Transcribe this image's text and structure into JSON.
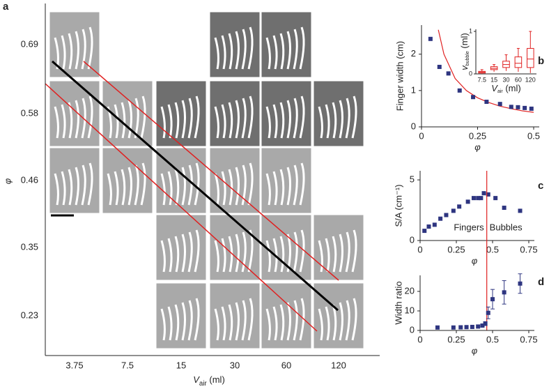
{
  "chart_data": [
    {
      "type": "image-grid",
      "panel_label": "a",
      "categories": [
        "3.75",
        "7.5",
        "15",
        "30",
        "60",
        "120"
      ],
      "row_categories": [
        "0.69",
        "0.58",
        "0.46",
        "0.35",
        "0.23"
      ],
      "xlabel": {
        "symbol": "V",
        "subscript": "air",
        "unit": " (ml)"
      },
      "ylabel": "φ",
      "fit_color": "#000000",
      "bound_color": "#e02020"
    },
    {
      "type": "scatter",
      "panel_label": "b",
      "x": [
        0.04,
        0.08,
        0.12,
        0.17,
        0.23,
        0.29,
        0.35,
        0.4,
        0.43,
        0.46,
        0.49
      ],
      "values": [
        2.42,
        1.65,
        1.47,
        1.0,
        0.82,
        0.69,
        0.63,
        0.55,
        0.54,
        0.52,
        0.5
      ],
      "color": "#2e3580",
      "fit": {
        "x": [
          0.075,
          0.1,
          0.15,
          0.2,
          0.25,
          0.3,
          0.35,
          0.4,
          0.45,
          0.5
        ],
        "values": [
          2.67,
          2.0,
          1.33,
          1.0,
          0.8,
          0.67,
          0.57,
          0.5,
          0.44,
          0.4
        ],
        "color": "#e02020"
      },
      "xlim": [
        0,
        0.5
      ],
      "xticks": [
        0,
        0.25,
        0.5
      ],
      "ylim": [
        0,
        2.8
      ],
      "yticks": [
        0,
        1,
        2
      ],
      "xlabel": "φ",
      "ylabel": "Finger width (cm)"
    },
    {
      "type": "box",
      "categories": [
        "7.5",
        "15",
        "30",
        "60",
        "120"
      ],
      "min": [
        0.0,
        0.05,
        0.07,
        0.05,
        0.02
      ],
      "q1": [
        0.02,
        0.1,
        0.15,
        0.15,
        0.15
      ],
      "median": [
        0.04,
        0.13,
        0.22,
        0.25,
        0.35
      ],
      "q3": [
        0.06,
        0.17,
        0.3,
        0.4,
        0.6
      ],
      "max": [
        0.1,
        0.22,
        0.45,
        0.6,
        1.0
      ],
      "color": "#e02020",
      "ylim": [
        0,
        1.05
      ],
      "yticks": [
        0,
        1
      ],
      "xlabel": {
        "symbol": "V",
        "subscript": "air",
        "unit": " (ml)"
      },
      "ylabel": {
        "symbol": "v",
        "subscript": "bubble",
        "unit": " (ml)"
      }
    },
    {
      "type": "scatter",
      "panel_label": "c",
      "x": [
        0.03,
        0.06,
        0.1,
        0.14,
        0.18,
        0.23,
        0.27,
        0.33,
        0.37,
        0.4,
        0.42,
        0.44,
        0.47,
        0.52,
        0.58,
        0.69
      ],
      "values": [
        0.8,
        1.15,
        1.3,
        1.8,
        2.1,
        2.45,
        2.8,
        3.2,
        3.5,
        3.5,
        3.5,
        3.9,
        3.8,
        3.5,
        2.7,
        2.45
      ],
      "color": "#2e3580",
      "threshold": 0.46,
      "threshold_color": "#e02020",
      "xlim": [
        0,
        0.75
      ],
      "xticks": [
        0,
        0.25,
        0.5,
        0.75
      ],
      "ylim": [
        0,
        5.75
      ],
      "yticks": [
        0,
        5
      ],
      "xlabel": "φ",
      "ylabel": "S/A (cm⁻¹)",
      "annotations": [
        "Fingers",
        "Bubbles"
      ]
    },
    {
      "type": "errorbar",
      "panel_label": "d",
      "x": [
        0.12,
        0.23,
        0.28,
        0.32,
        0.36,
        0.4,
        0.43,
        0.45,
        0.47,
        0.5,
        0.58,
        0.69
      ],
      "values": [
        1.5,
        1.5,
        1.6,
        1.7,
        1.8,
        2.0,
        2.5,
        3.5,
        9,
        16,
        19.5,
        24
      ],
      "errors": [
        0,
        0,
        0,
        0,
        0,
        0,
        0.5,
        1,
        3,
        5,
        6,
        5
      ],
      "color": "#2e3580",
      "xlim": [
        0,
        0.75
      ],
      "xticks": [
        0,
        0.25,
        0.5,
        0.75
      ],
      "ylim": [
        0,
        28.2
      ],
      "yticks": [
        0,
        10,
        20
      ],
      "xlabel": "φ",
      "ylabel": "Width ratio"
    }
  ]
}
